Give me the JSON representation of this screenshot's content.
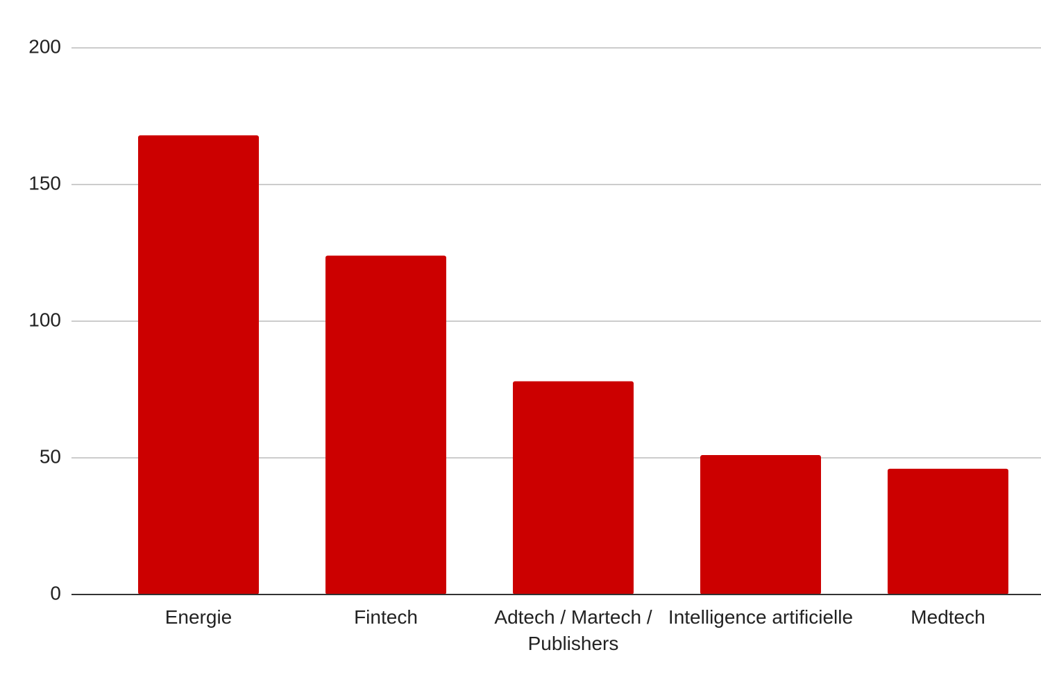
{
  "chart_data": {
    "type": "bar",
    "categories": [
      "Energie",
      "Fintech",
      "Adtech / Martech / Publishers",
      "Intelligence artificielle",
      "Medtech"
    ],
    "values": [
      168,
      124,
      78,
      51,
      46
    ],
    "color": "#cc0000",
    "ylim": [
      0,
      200
    ],
    "yticks": [
      0,
      50,
      100,
      150,
      200
    ],
    "grid": true
  }
}
